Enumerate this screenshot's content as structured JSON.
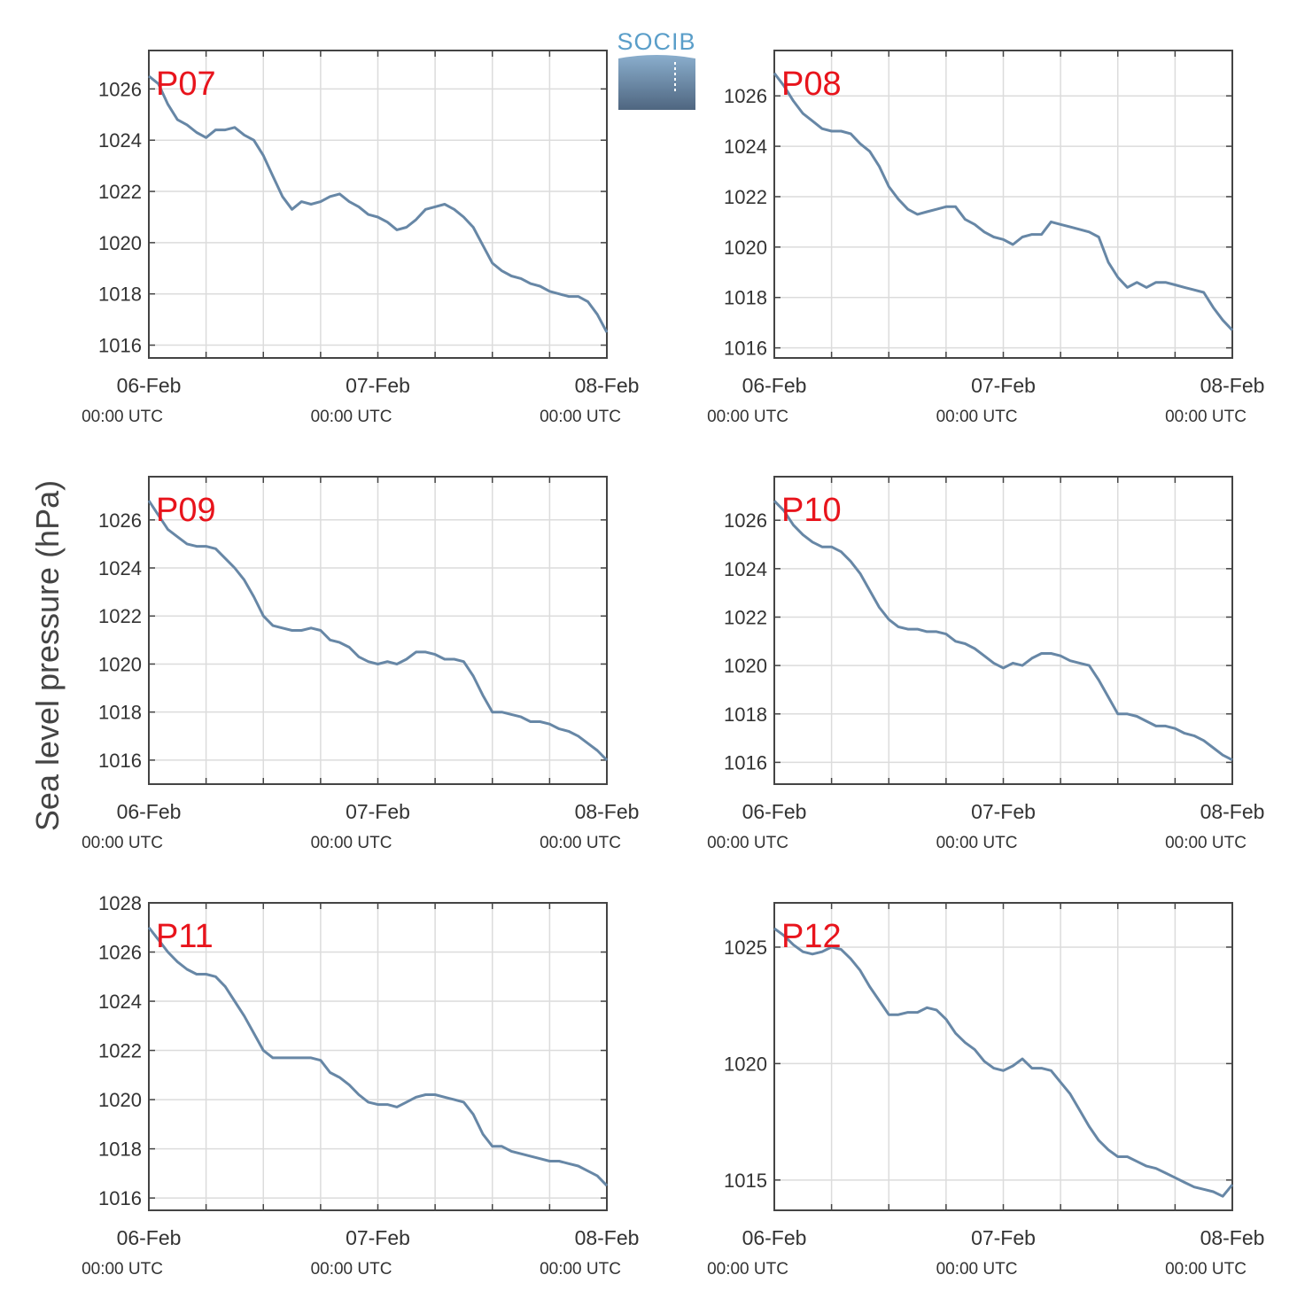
{
  "figure": {
    "ylabel": "Sea level pressure (hPa)",
    "logo_text": "SOCIB",
    "line_color": "#6787a6",
    "label_color": "#e8141c",
    "grid": true
  },
  "chart_data": [
    {
      "type": "line",
      "label": "P07",
      "x_ticks": [
        {
          "date": "06-Feb",
          "time": "00:00 UTC"
        },
        {
          "date": "07-Feb",
          "time": "00:00 UTC"
        },
        {
          "date": "08-Feb",
          "time": "00:00 UTC"
        }
      ],
      "xlim": [
        "2024-02-06T00:00Z",
        "2024-02-08T00:00Z"
      ],
      "ylim": [
        1015.5,
        1027.5
      ],
      "yticks": [
        1016,
        1018,
        1020,
        1022,
        1024,
        1026
      ],
      "series": [
        {
          "x_hours": [
            0,
            1,
            2,
            3,
            4,
            5,
            6,
            7,
            8,
            9,
            10,
            11,
            12,
            13,
            14,
            15,
            16,
            17,
            18,
            19,
            20,
            21,
            22,
            23,
            24,
            25,
            26,
            27,
            28,
            29,
            30,
            31,
            32,
            33,
            34,
            35,
            36,
            37,
            38,
            39,
            40,
            41,
            42,
            43,
            44,
            45,
            46,
            47,
            48
          ],
          "values": [
            1026.5,
            1026.2,
            1025.4,
            1024.8,
            1024.6,
            1024.3,
            1024.1,
            1024.4,
            1024.4,
            1024.5,
            1024.2,
            1024.0,
            1023.4,
            1022.6,
            1021.8,
            1021.3,
            1021.6,
            1021.5,
            1021.6,
            1021.8,
            1021.9,
            1021.6,
            1021.4,
            1021.1,
            1021.0,
            1020.8,
            1020.5,
            1020.6,
            1020.9,
            1021.3,
            1021.4,
            1021.5,
            1021.3,
            1021.0,
            1020.6,
            1019.9,
            1019.2,
            1018.9,
            1018.7,
            1018.6,
            1018.4,
            1018.3,
            1018.1,
            1018.0,
            1017.9,
            1017.9,
            1017.7,
            1017.2,
            1016.5
          ]
        }
      ]
    },
    {
      "type": "line",
      "label": "P08",
      "x_ticks": [
        {
          "date": "06-Feb",
          "time": "00:00 UTC"
        },
        {
          "date": "07-Feb",
          "time": "00:00 UTC"
        },
        {
          "date": "08-Feb",
          "time": "00:00 UTC"
        }
      ],
      "xlim": [
        "2024-02-06T00:00Z",
        "2024-02-08T00:00Z"
      ],
      "ylim": [
        1015.6,
        1027.8
      ],
      "yticks": [
        1016,
        1018,
        1020,
        1022,
        1024,
        1026
      ],
      "series": [
        {
          "x_hours": [
            0,
            1,
            2,
            3,
            4,
            5,
            6,
            7,
            8,
            9,
            10,
            11,
            12,
            13,
            14,
            15,
            16,
            17,
            18,
            19,
            20,
            21,
            22,
            23,
            24,
            25,
            26,
            27,
            28,
            29,
            30,
            31,
            32,
            33,
            34,
            35,
            36,
            37,
            38,
            39,
            40,
            41,
            42,
            43,
            44,
            45,
            46,
            47,
            48
          ],
          "values": [
            1026.9,
            1026.4,
            1025.8,
            1025.3,
            1025.0,
            1024.7,
            1024.6,
            1024.6,
            1024.5,
            1024.1,
            1023.8,
            1023.2,
            1022.4,
            1021.9,
            1021.5,
            1021.3,
            1021.4,
            1021.5,
            1021.6,
            1021.6,
            1021.1,
            1020.9,
            1020.6,
            1020.4,
            1020.3,
            1020.1,
            1020.4,
            1020.5,
            1020.5,
            1021.0,
            1020.9,
            1020.8,
            1020.7,
            1020.6,
            1020.4,
            1019.4,
            1018.8,
            1018.4,
            1018.6,
            1018.4,
            1018.6,
            1018.6,
            1018.5,
            1018.4,
            1018.3,
            1018.2,
            1017.6,
            1017.1,
            1016.7
          ]
        }
      ]
    },
    {
      "type": "line",
      "label": "P09",
      "x_ticks": [
        {
          "date": "06-Feb",
          "time": "00:00 UTC"
        },
        {
          "date": "07-Feb",
          "time": "00:00 UTC"
        },
        {
          "date": "08-Feb",
          "time": "00:00 UTC"
        }
      ],
      "xlim": [
        "2024-02-06T00:00Z",
        "2024-02-08T00:00Z"
      ],
      "ylim": [
        1015.0,
        1027.8
      ],
      "yticks": [
        1016,
        1018,
        1020,
        1022,
        1024,
        1026
      ],
      "series": [
        {
          "x_hours": [
            0,
            1,
            2,
            3,
            4,
            5,
            6,
            7,
            8,
            9,
            10,
            11,
            12,
            13,
            14,
            15,
            16,
            17,
            18,
            19,
            20,
            21,
            22,
            23,
            24,
            25,
            26,
            27,
            28,
            29,
            30,
            31,
            32,
            33,
            34,
            35,
            36,
            37,
            38,
            39,
            40,
            41,
            42,
            43,
            44,
            45,
            46,
            47,
            48
          ],
          "values": [
            1026.8,
            1026.2,
            1025.6,
            1025.3,
            1025.0,
            1024.9,
            1024.9,
            1024.8,
            1024.4,
            1024.0,
            1023.5,
            1022.8,
            1022.0,
            1021.6,
            1021.5,
            1021.4,
            1021.4,
            1021.5,
            1021.4,
            1021.0,
            1020.9,
            1020.7,
            1020.3,
            1020.1,
            1020.0,
            1020.1,
            1020.0,
            1020.2,
            1020.5,
            1020.5,
            1020.4,
            1020.2,
            1020.2,
            1020.1,
            1019.5,
            1018.7,
            1018.0,
            1018.0,
            1017.9,
            1017.8,
            1017.6,
            1017.6,
            1017.5,
            1017.3,
            1017.2,
            1017.0,
            1016.7,
            1016.4,
            1016.0
          ]
        }
      ]
    },
    {
      "type": "line",
      "label": "P10",
      "x_ticks": [
        {
          "date": "06-Feb",
          "time": "00:00 UTC"
        },
        {
          "date": "07-Feb",
          "time": "00:00 UTC"
        },
        {
          "date": "08-Feb",
          "time": "00:00 UTC"
        }
      ],
      "xlim": [
        "2024-02-06T00:00Z",
        "2024-02-08T00:00Z"
      ],
      "ylim": [
        1015.1,
        1027.8
      ],
      "yticks": [
        1016,
        1018,
        1020,
        1022,
        1024,
        1026
      ],
      "series": [
        {
          "x_hours": [
            0,
            1,
            2,
            3,
            4,
            5,
            6,
            7,
            8,
            9,
            10,
            11,
            12,
            13,
            14,
            15,
            16,
            17,
            18,
            19,
            20,
            21,
            22,
            23,
            24,
            25,
            26,
            27,
            28,
            29,
            30,
            31,
            32,
            33,
            34,
            35,
            36,
            37,
            38,
            39,
            40,
            41,
            42,
            43,
            44,
            45,
            46,
            47,
            48
          ],
          "values": [
            1026.8,
            1026.4,
            1025.8,
            1025.4,
            1025.1,
            1024.9,
            1024.9,
            1024.7,
            1024.3,
            1023.8,
            1023.1,
            1022.4,
            1021.9,
            1021.6,
            1021.5,
            1021.5,
            1021.4,
            1021.4,
            1021.3,
            1021.0,
            1020.9,
            1020.7,
            1020.4,
            1020.1,
            1019.9,
            1020.1,
            1020.0,
            1020.3,
            1020.5,
            1020.5,
            1020.4,
            1020.2,
            1020.1,
            1020.0,
            1019.4,
            1018.7,
            1018.0,
            1018.0,
            1017.9,
            1017.7,
            1017.5,
            1017.5,
            1017.4,
            1017.2,
            1017.1,
            1016.9,
            1016.6,
            1016.3,
            1016.1
          ]
        }
      ]
    },
    {
      "type": "line",
      "label": "P11",
      "x_ticks": [
        {
          "date": "06-Feb",
          "time": "00:00 UTC"
        },
        {
          "date": "07-Feb",
          "time": "00:00 UTC"
        },
        {
          "date": "08-Feb",
          "time": "00:00 UTC"
        }
      ],
      "xlim": [
        "2024-02-06T00:00Z",
        "2024-02-08T00:00Z"
      ],
      "ylim": [
        1015.5,
        1028.0
      ],
      "yticks": [
        1016,
        1018,
        1020,
        1022,
        1024,
        1026,
        1028
      ],
      "series": [
        {
          "x_hours": [
            0,
            1,
            2,
            3,
            4,
            5,
            6,
            7,
            8,
            9,
            10,
            11,
            12,
            13,
            14,
            15,
            16,
            17,
            18,
            19,
            20,
            21,
            22,
            23,
            24,
            25,
            26,
            27,
            28,
            29,
            30,
            31,
            32,
            33,
            34,
            35,
            36,
            37,
            38,
            39,
            40,
            41,
            42,
            43,
            44,
            45,
            46,
            47,
            48
          ],
          "values": [
            1027.0,
            1026.5,
            1026.0,
            1025.6,
            1025.3,
            1025.1,
            1025.1,
            1025.0,
            1024.6,
            1024.0,
            1023.4,
            1022.7,
            1022.0,
            1021.7,
            1021.7,
            1021.7,
            1021.7,
            1021.7,
            1021.6,
            1021.1,
            1020.9,
            1020.6,
            1020.2,
            1019.9,
            1019.8,
            1019.8,
            1019.7,
            1019.9,
            1020.1,
            1020.2,
            1020.2,
            1020.1,
            1020.0,
            1019.9,
            1019.4,
            1018.6,
            1018.1,
            1018.1,
            1017.9,
            1017.8,
            1017.7,
            1017.6,
            1017.5,
            1017.5,
            1017.4,
            1017.3,
            1017.1,
            1016.9,
            1016.5
          ]
        }
      ]
    },
    {
      "type": "line",
      "label": "P12",
      "x_ticks": [
        {
          "date": "06-Feb",
          "time": "00:00 UTC"
        },
        {
          "date": "07-Feb",
          "time": "00:00 UTC"
        },
        {
          "date": "08-Feb",
          "time": "00:00 UTC"
        }
      ],
      "xlim": [
        "2024-02-06T00:00Z",
        "2024-02-08T00:00Z"
      ],
      "ylim": [
        1013.7,
        1026.9
      ],
      "yticks": [
        1015,
        1020,
        1025
      ],
      "series": [
        {
          "x_hours": [
            0,
            1,
            2,
            3,
            4,
            5,
            6,
            7,
            8,
            9,
            10,
            11,
            12,
            13,
            14,
            15,
            16,
            17,
            18,
            19,
            20,
            21,
            22,
            23,
            24,
            25,
            26,
            27,
            28,
            29,
            30,
            31,
            32,
            33,
            34,
            35,
            36,
            37,
            38,
            39,
            40,
            41,
            42,
            43,
            44,
            45,
            46,
            47,
            48
          ],
          "values": [
            1025.8,
            1025.5,
            1025.1,
            1024.8,
            1024.7,
            1024.8,
            1025.0,
            1024.9,
            1024.5,
            1024.0,
            1023.3,
            1022.7,
            1022.1,
            1022.1,
            1022.2,
            1022.2,
            1022.4,
            1022.3,
            1021.9,
            1021.3,
            1020.9,
            1020.6,
            1020.1,
            1019.8,
            1019.7,
            1019.9,
            1020.2,
            1019.8,
            1019.8,
            1019.7,
            1019.2,
            1018.7,
            1018.0,
            1017.3,
            1016.7,
            1016.3,
            1016.0,
            1016.0,
            1015.8,
            1015.6,
            1015.5,
            1015.3,
            1015.1,
            1014.9,
            1014.7,
            1014.6,
            1014.5,
            1014.3,
            1014.8
          ]
        }
      ]
    }
  ]
}
